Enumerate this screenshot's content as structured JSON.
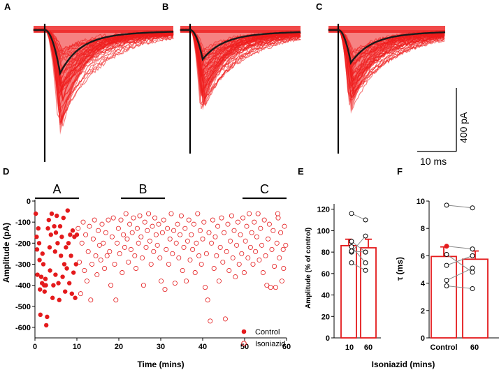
{
  "panels": {
    "a": "A",
    "b": "B",
    "c": "C",
    "d": "D",
    "e": "E",
    "f": "F"
  },
  "colors": {
    "trace": "#ee1c1c",
    "mean": "#1a1a1a",
    "control": "#e41a1c",
    "bar_edge": "#e41a1c",
    "line": "#000000"
  },
  "scale_bar": {
    "amplitude_label": "400 pA",
    "time_label": "10 ms"
  },
  "chart_data": [
    {
      "id": "panel-d",
      "type": "scatter",
      "xlabel": "Time (mins)",
      "ylabel": "Amplitude (pA)",
      "xlim": [
        0,
        60
      ],
      "ylim": [
        -650,
        0
      ],
      "xticks": [
        0,
        10,
        20,
        30,
        40,
        50,
        60
      ],
      "yticks": [
        0,
        -100,
        -200,
        -300,
        -400,
        -500,
        -600
      ],
      "period_bars": [
        {
          "label": "A",
          "start": 0,
          "end": 10.5
        },
        {
          "label": "B",
          "start": 20.5,
          "end": 31
        },
        {
          "label": "C",
          "start": 49.5,
          "end": 60
        }
      ],
      "legend": [
        {
          "label": "Control",
          "marker": "filled"
        },
        {
          "label": "Isoniazid",
          "marker": "open"
        }
      ],
      "series": [
        {
          "name": "Control",
          "marker": "filled",
          "points": [
            [
              0.2,
              -60
            ],
            [
              0.5,
              -230
            ],
            [
              0.6,
              -350
            ],
            [
              0.8,
              -130
            ],
            [
              1.0,
              -200
            ],
            [
              1.2,
              -420
            ],
            [
              1.3,
              -540
            ],
            [
              1.5,
              -360
            ],
            [
              1.7,
              -390
            ],
            [
              1.8,
              -250
            ],
            [
              2.0,
              -300
            ],
            [
              2.2,
              -400
            ],
            [
              2.3,
              -430
            ],
            [
              2.5,
              -370
            ],
            [
              2.7,
              -590
            ],
            [
              2.9,
              -550
            ],
            [
              3.1,
              -130
            ],
            [
              3.3,
              -90
            ],
            [
              3.5,
              -220
            ],
            [
              3.6,
              -330
            ],
            [
              3.8,
              -160
            ],
            [
              4.0,
              -60
            ],
            [
              4.2,
              -460
            ],
            [
              4.4,
              -400
            ],
            [
              4.6,
              -120
            ],
            [
              4.8,
              -240
            ],
            [
              5.0,
              -150
            ],
            [
              5.2,
              -70
            ],
            [
              5.4,
              -200
            ],
            [
              5.6,
              -390
            ],
            [
              5.8,
              -470
            ],
            [
              6.0,
              -120
            ],
            [
              6.2,
              -260
            ],
            [
              6.4,
              -170
            ],
            [
              6.6,
              -360
            ],
            [
              6.8,
              -80
            ],
            [
              7.0,
              -300
            ],
            [
              7.2,
              -430
            ],
            [
              7.4,
              -220
            ],
            [
              7.6,
              -320
            ],
            [
              7.8,
              -45
            ],
            [
              8.0,
              -200
            ],
            [
              8.2,
              -390
            ],
            [
              8.4,
              -160
            ],
            [
              8.6,
              -260
            ],
            [
              8.8,
              -440
            ],
            [
              9.0,
              -140
            ],
            [
              9.2,
              -340
            ],
            [
              9.4,
              -170
            ],
            [
              9.6,
              -460
            ],
            [
              9.8,
              -300
            ],
            [
              10.0,
              -160
            ],
            [
              0.4,
              -170
            ],
            [
              1.1,
              -280
            ],
            [
              2.6,
              -400
            ],
            [
              4.9,
              -350
            ]
          ]
        },
        {
          "name": "Isoniazid",
          "marker": "open",
          "points": [
            [
              10.3,
              -130
            ],
            [
              10.6,
              -290
            ],
            [
              10.9,
              -440
            ],
            [
              11.2,
              -200
            ],
            [
              11.5,
              -100
            ],
            [
              11.8,
              -330
            ],
            [
              12.1,
              -160
            ],
            [
              12.4,
              -380
            ],
            [
              12.7,
              -240
            ],
            [
              13.0,
              -120
            ],
            [
              13.3,
              -470
            ],
            [
              13.6,
              -300
            ],
            [
              13.9,
              -180
            ],
            [
              14.2,
              -90
            ],
            [
              14.5,
              -260
            ],
            [
              14.8,
              -350
            ],
            [
              15.1,
              -140
            ],
            [
              15.4,
              -210
            ],
            [
              15.7,
              -280
            ],
            [
              16.0,
              -110
            ],
            [
              16.3,
              -200
            ],
            [
              16.6,
              -320
            ],
            [
              16.9,
              -150
            ],
            [
              17.2,
              -260
            ],
            [
              17.5,
              -90
            ],
            [
              17.8,
              -240
            ],
            [
              18.1,
              -400
            ],
            [
              18.4,
              -170
            ],
            [
              18.7,
              -80
            ],
            [
              19.0,
              -300
            ],
            [
              19.3,
              -470
            ],
            [
              19.6,
              -200
            ],
            [
              19.9,
              -130
            ],
            [
              20.2,
              -250
            ],
            [
              20.5,
              -90
            ],
            [
              20.8,
              -340
            ],
            [
              21.1,
              -160
            ],
            [
              21.4,
              -220
            ],
            [
              21.7,
              -60
            ],
            [
              22.0,
              -180
            ],
            [
              22.3,
              -290
            ],
            [
              22.6,
              -110
            ],
            [
              22.9,
              -230
            ],
            [
              23.2,
              -150
            ],
            [
              23.5,
              -80
            ],
            [
              23.8,
              -260
            ],
            [
              24.1,
              -320
            ],
            [
              24.4,
              -130
            ],
            [
              24.7,
              -200
            ],
            [
              25.0,
              -70
            ],
            [
              25.3,
              -170
            ],
            [
              25.6,
              -270
            ],
            [
              25.9,
              -400
            ],
            [
              26.2,
              -100
            ],
            [
              26.5,
              -220
            ],
            [
              26.8,
              -140
            ],
            [
              27.1,
              -60
            ],
            [
              27.4,
              -190
            ],
            [
              27.7,
              -300
            ],
            [
              28.0,
              -120
            ],
            [
              28.3,
              -240
            ],
            [
              28.6,
              -80
            ],
            [
              28.9,
              -160
            ],
            [
              29.2,
              -210
            ],
            [
              29.5,
              -110
            ],
            [
              29.8,
              -270
            ],
            [
              30.1,
              -380
            ],
            [
              30.4,
              -150
            ],
            [
              30.7,
              -90
            ],
            [
              31.0,
              -420
            ],
            [
              31.3,
              -230
            ],
            [
              31.6,
              -130
            ],
            [
              31.9,
              -300
            ],
            [
              32.2,
              -180
            ],
            [
              32.5,
              -60
            ],
            [
              32.8,
              -250
            ],
            [
              33.1,
              -140
            ],
            [
              33.4,
              -390
            ],
            [
              33.7,
              -200
            ],
            [
              34.0,
              -110
            ],
            [
              34.3,
              -270
            ],
            [
              34.6,
              -160
            ],
            [
              34.9,
              -70
            ],
            [
              35.2,
              -330
            ],
            [
              35.5,
              -220
            ],
            [
              35.8,
              -130
            ],
            [
              36.1,
              -380
            ],
            [
              36.4,
              -190
            ],
            [
              36.7,
              -90
            ],
            [
              37.0,
              -280
            ],
            [
              37.3,
              -160
            ],
            [
              37.6,
              -230
            ],
            [
              37.9,
              -110
            ],
            [
              38.2,
              -340
            ],
            [
              38.5,
              -200
            ],
            [
              38.8,
              -60
            ],
            [
              39.1,
              -260
            ],
            [
              39.4,
              -140
            ],
            [
              39.7,
              -300
            ],
            [
              40.0,
              -180
            ],
            [
              40.3,
              -100
            ],
            [
              40.6,
              -410
            ],
            [
              40.9,
              -250
            ],
            [
              41.2,
              -470
            ],
            [
              41.5,
              -150
            ],
            [
              41.8,
              -570
            ],
            [
              42.1,
              -200
            ],
            [
              42.4,
              -90
            ],
            [
              42.7,
              -320
            ],
            [
              43.0,
              -170
            ],
            [
              43.3,
              -260
            ],
            [
              43.6,
              -120
            ],
            [
              43.9,
              -380
            ],
            [
              44.2,
              -220
            ],
            [
              44.5,
              -80
            ],
            [
              44.8,
              -290
            ],
            [
              45.1,
              -150
            ],
            [
              45.4,
              -560
            ],
            [
              45.7,
              -240
            ],
            [
              46.0,
              -110
            ],
            [
              46.3,
              -330
            ],
            [
              46.6,
              -190
            ],
            [
              46.9,
              -70
            ],
            [
              47.2,
              -270
            ],
            [
              47.5,
              -140
            ],
            [
              47.8,
              -360
            ],
            [
              48.1,
              -210
            ],
            [
              48.4,
              -100
            ],
            [
              48.7,
              -300
            ],
            [
              49.0,
              -160
            ],
            [
              49.3,
              -250
            ],
            [
              49.6,
              -80
            ],
            [
              49.9,
              -340
            ],
            [
              50.2,
              -190
            ],
            [
              50.5,
              -120
            ],
            [
              50.8,
              -270
            ],
            [
              51.1,
              -60
            ],
            [
              51.4,
              -220
            ],
            [
              51.7,
              -150
            ],
            [
              52.0,
              -300
            ],
            [
              52.3,
              -100
            ],
            [
              52.6,
              -240
            ],
            [
              52.9,
              -170
            ],
            [
              53.2,
              -60
            ],
            [
              53.5,
              -280
            ],
            [
              53.8,
              -130
            ],
            [
              54.1,
              -210
            ],
            [
              54.4,
              -340
            ],
            [
              54.7,
              -90
            ],
            [
              55.0,
              -260
            ],
            [
              55.3,
              -400
            ],
            [
              55.6,
              -180
            ],
            [
              55.9,
              -110
            ],
            [
              56.2,
              -410
            ],
            [
              56.5,
              -230
            ],
            [
              56.8,
              -140
            ],
            [
              57.1,
              -310
            ],
            [
              57.4,
              -410
            ],
            [
              57.7,
              -200
            ],
            [
              58.0,
              -80
            ],
            [
              58.3,
              -270
            ],
            [
              58.6,
              -150
            ],
            [
              58.9,
              -380
            ],
            [
              59.2,
              -230
            ],
            [
              59.5,
              -120
            ],
            [
              59.8,
              -210
            ],
            [
              59.3,
              -320
            ],
            [
              57.9,
              -60
            ]
          ]
        }
      ]
    },
    {
      "id": "panel-e",
      "type": "bar",
      "ylabel": "Amplitude (% of control)",
      "shared_xlabel": "Isoniazid (mins)",
      "categories": [
        "10",
        "60"
      ],
      "values": [
        86,
        84
      ],
      "errors": [
        6,
        8
      ],
      "ylim": [
        0,
        125
      ],
      "yticks": [
        0,
        20,
        40,
        60,
        80,
        100,
        120
      ],
      "paired_points": [
        [
          116,
          110
        ],
        [
          90,
          80
        ],
        [
          80,
          95
        ],
        [
          70,
          63
        ],
        [
          81,
          80
        ],
        [
          85,
          70
        ]
      ]
    },
    {
      "id": "panel-f",
      "type": "bar",
      "ylabel": "τ (ms)",
      "categories": [
        "Control",
        "60"
      ],
      "values": [
        5.95,
        5.75
      ],
      "errors": [
        0.7,
        0.6
      ],
      "ylim": [
        0,
        10
      ],
      "yticks": [
        0,
        2,
        4,
        6,
        8,
        10
      ],
      "paired_points": [
        [
          9.7,
          9.5
        ],
        [
          6.7,
          6.5
        ],
        [
          6.1,
          4.8
        ],
        [
          5.3,
          6.0
        ],
        [
          4.2,
          5.1
        ],
        [
          3.8,
          3.6
        ]
      ],
      "control_highlight_index": 1
    }
  ]
}
